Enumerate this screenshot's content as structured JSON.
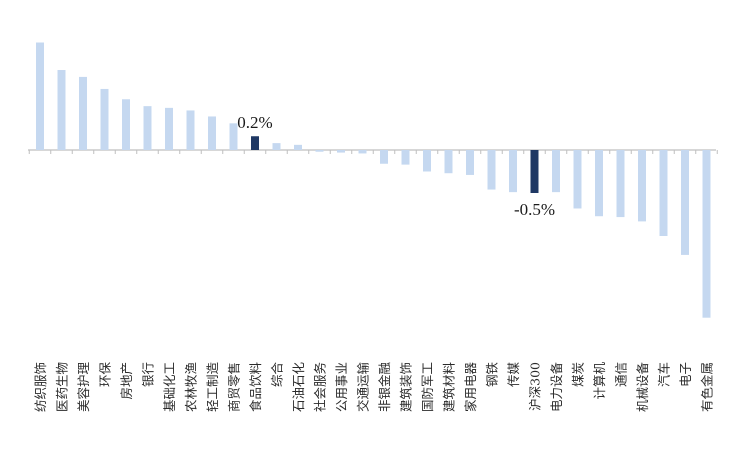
{
  "chart_data": {
    "type": "bar",
    "title": "",
    "xlabel": "",
    "ylabel": "",
    "categories": [
      "纺织服饰",
      "医药生物",
      "美容护理",
      "环保",
      "房地产",
      "银行",
      "基础化工",
      "农林牧渔",
      "轻工制造",
      "商贸零售",
      "食品饮料",
      "综合",
      "石油石化",
      "社会服务",
      "公用事业",
      "交通运输",
      "非银金融",
      "建筑装饰",
      "国防军工",
      "建筑材料",
      "家用电器",
      "钢铁",
      "传媒",
      "沪深300",
      "电力设备",
      "煤炭",
      "计算机",
      "通信",
      "机械设备",
      "汽车",
      "电子",
      "有色金属"
    ],
    "values": [
      1.25,
      0.93,
      0.85,
      0.71,
      0.59,
      0.51,
      0.49,
      0.46,
      0.39,
      0.31,
      0.16,
      0.08,
      0.06,
      -0.02,
      -0.03,
      -0.04,
      -0.16,
      -0.17,
      -0.25,
      -0.27,
      -0.29,
      -0.46,
      -0.49,
      -0.5,
      -0.49,
      -0.68,
      -0.77,
      -0.78,
      -0.83,
      -1.0,
      -1.22,
      -1.95
    ],
    "highlight_indices": [
      10,
      23
    ],
    "data_labels": [
      {
        "index": 10,
        "text": "0.2%"
      },
      {
        "index": 23,
        "text": "-0.5%"
      }
    ],
    "colors": {
      "bar": "#c5d8f0",
      "highlight": "#1f3864",
      "axis": "#bfbfbf"
    },
    "grid": false,
    "legend": "none"
  }
}
